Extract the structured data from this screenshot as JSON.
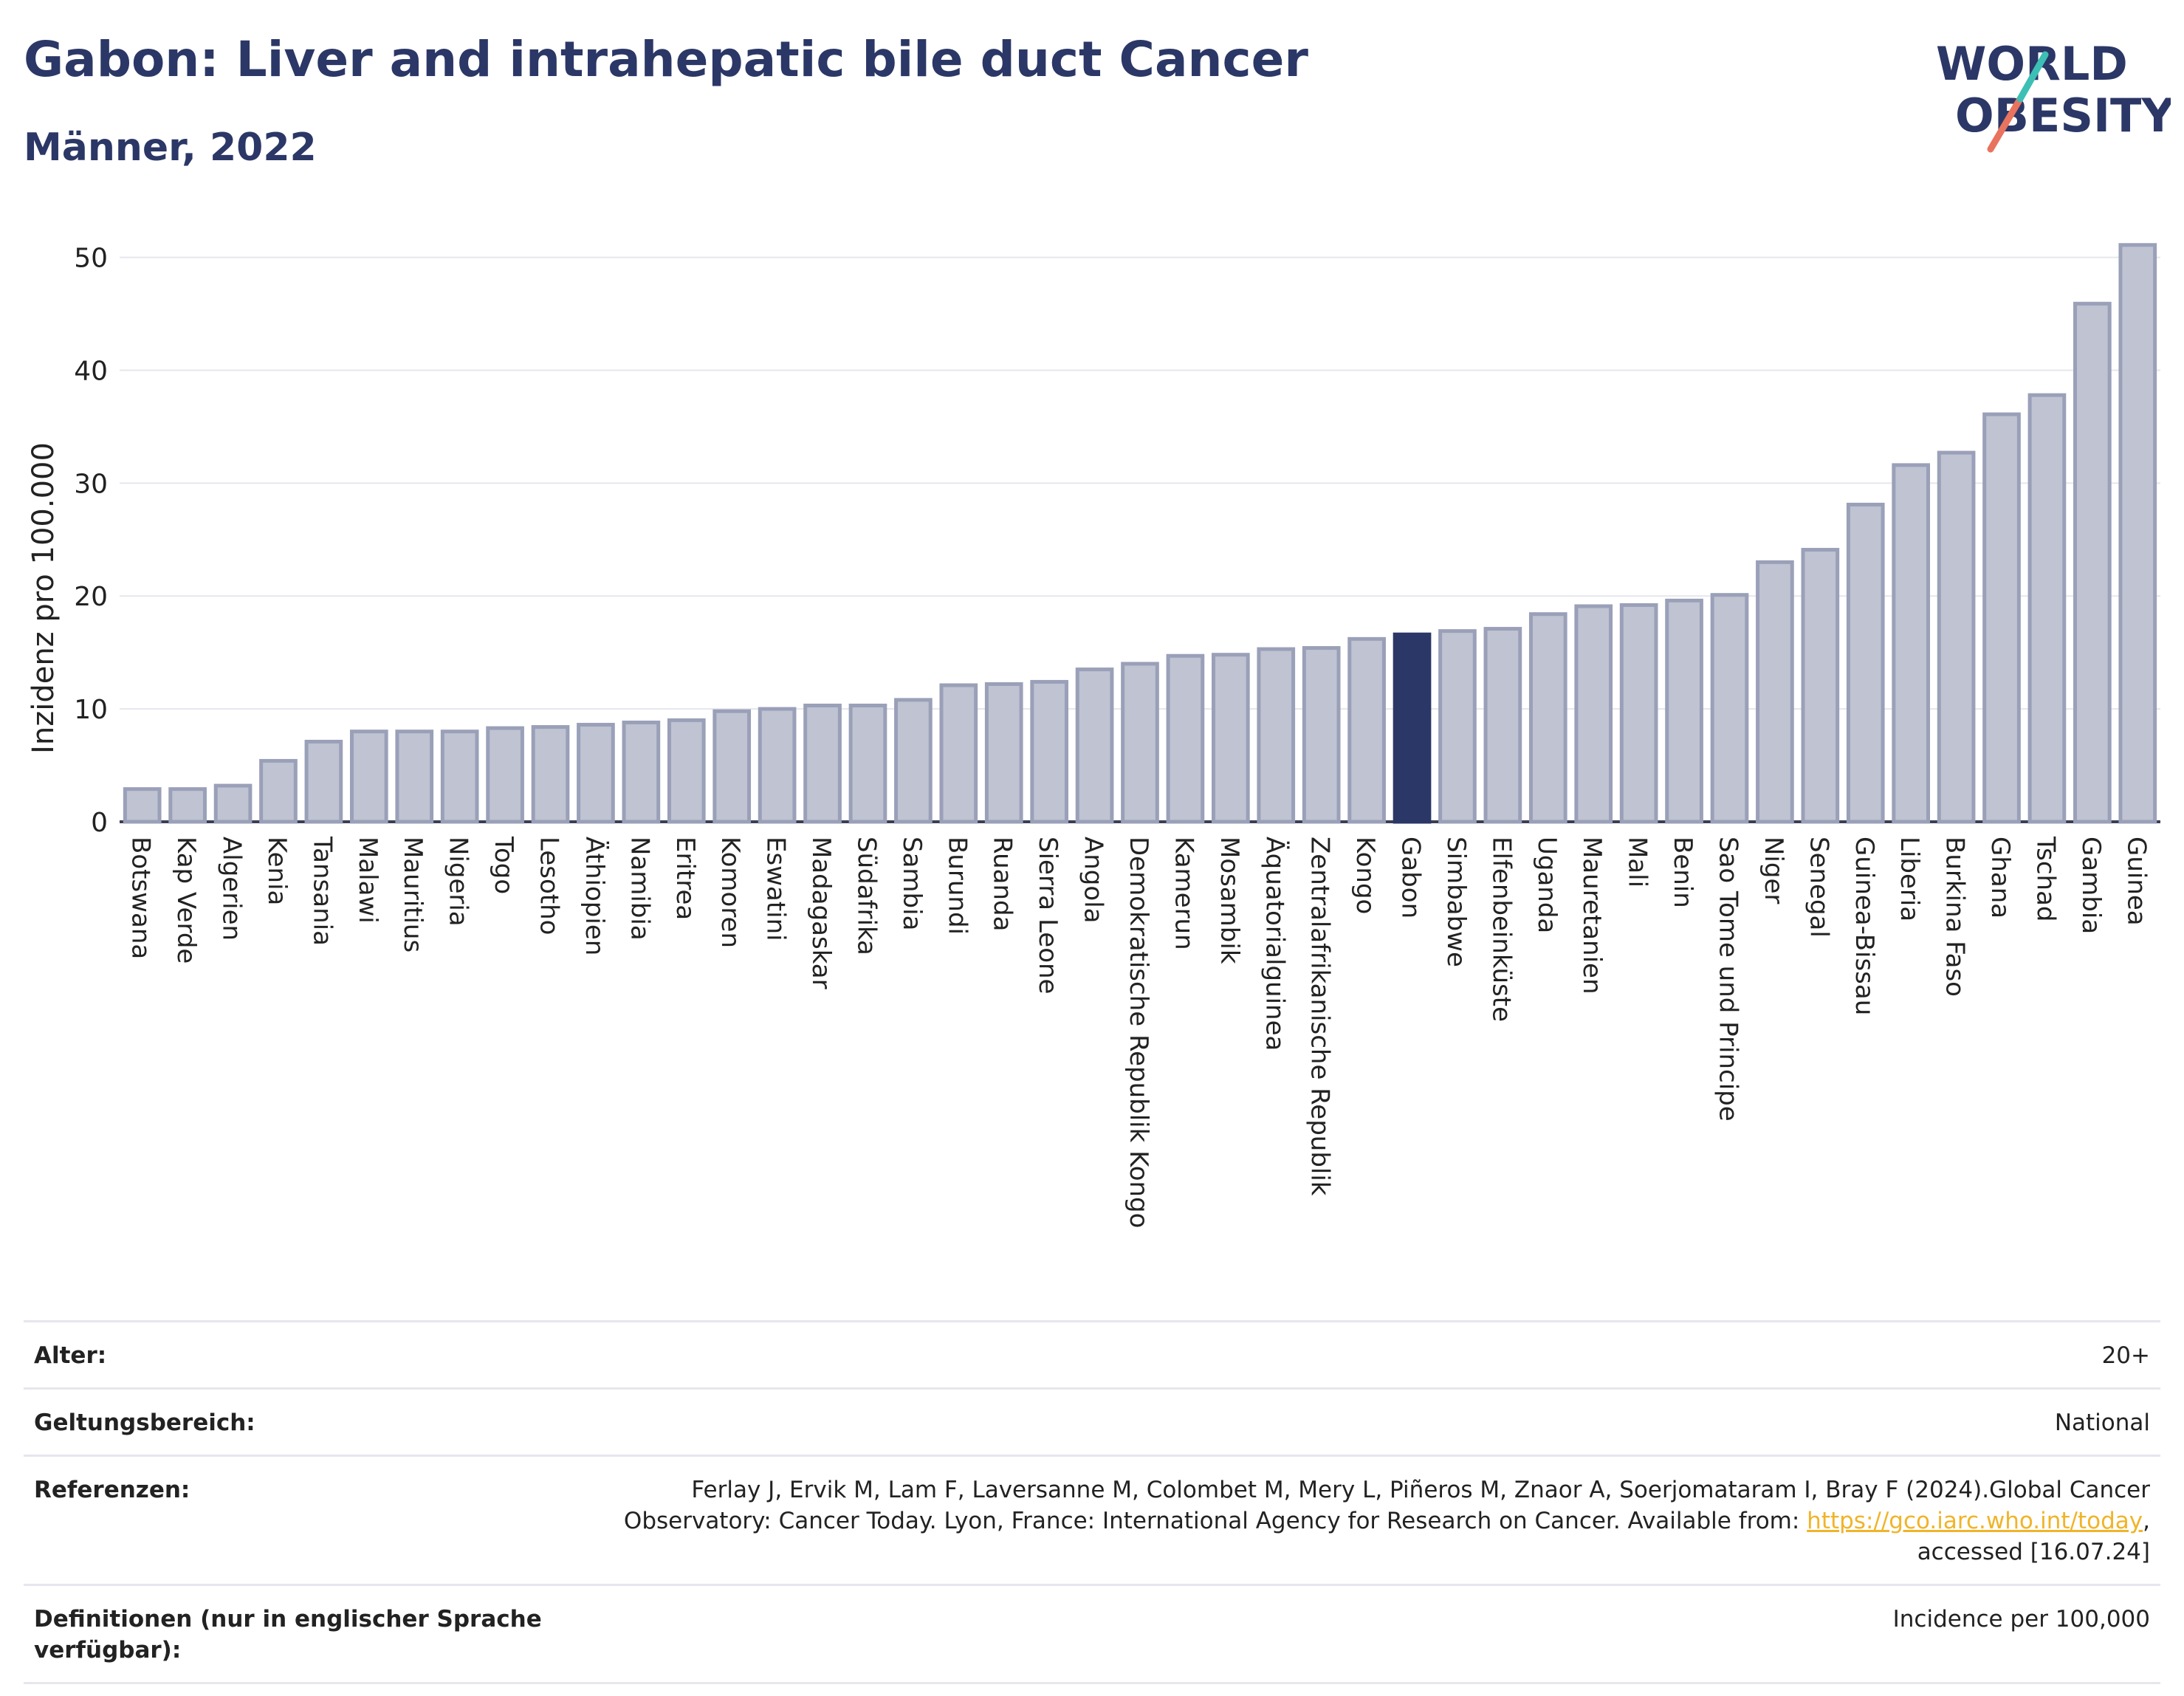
{
  "header": {
    "title": "Gabon: Liver and intrahepatic bile duct Cancer",
    "subtitle": "Männer, 2022"
  },
  "logo": {
    "line1": "WORLD",
    "line2": "OBESITY",
    "colors": {
      "text": "#2b3766",
      "slash_top": "#3cbfb4",
      "slash_bottom": "#e8735f"
    }
  },
  "chart_data": {
    "type": "bar",
    "ylabel": "Inzidenz pro 100.000",
    "ylim": [
      0,
      52
    ],
    "yticks": [
      0,
      10,
      20,
      30,
      40,
      50
    ],
    "grid": true,
    "highlight": "Gabon",
    "colors": {
      "bar": "#bfc3d2",
      "bar_border": "#9aa0b8",
      "highlight": "#2b3766"
    },
    "categories": [
      "Botswana",
      "Kap Verde",
      "Algerien",
      "Kenia",
      "Tansania",
      "Malawi",
      "Mauritius",
      "Nigeria",
      "Togo",
      "Lesotho",
      "Äthiopien",
      "Namibia",
      "Eritrea",
      "Komoren",
      "Eswatini",
      "Madagaskar",
      "Südafrika",
      "Sambia",
      "Burundi",
      "Ruanda",
      "Sierra Leone",
      "Angola",
      "Demokratische Republik Kongo",
      "Kamerun",
      "Mosambik",
      "Äquatorialguinea",
      "Zentralafrikanische Republik",
      "Kongo",
      "Gabon",
      "Simbabwe",
      "Elfenbeinküste",
      "Uganda",
      "Mauretanien",
      "Mali",
      "Benin",
      "Sao Tome und Principe",
      "Niger",
      "Senegal",
      "Guinea-Bissau",
      "Liberia",
      "Burkina Faso",
      "Ghana",
      "Tschad",
      "Gambia",
      "Guinea"
    ],
    "values": [
      2.9,
      2.9,
      3.2,
      5.4,
      7.1,
      8.0,
      8.0,
      8.0,
      8.3,
      8.4,
      8.6,
      8.8,
      9.0,
      9.8,
      10.0,
      10.3,
      10.3,
      10.8,
      12.1,
      12.2,
      12.4,
      13.5,
      14.0,
      14.7,
      14.8,
      15.3,
      15.4,
      16.2,
      16.6,
      16.9,
      17.1,
      18.4,
      19.1,
      19.2,
      19.6,
      20.1,
      23.0,
      24.1,
      28.1,
      31.6,
      32.7,
      36.1,
      37.8,
      45.9,
      51.1
    ]
  },
  "meta": [
    {
      "label": "Alter:",
      "value": "20+"
    },
    {
      "label": "Geltungsbereich:",
      "value": "National"
    },
    {
      "label": "Referenzen:",
      "value_before": "Ferlay J, Ervik M, Lam F, Laversanne M, Colombet M, Mery L, Piñeros M, Znaor A, Soerjomataram I, Bray F (2024).Global Cancer Observatory: Cancer Today. Lyon, France: International Agency for Research on Cancer. Available from: ",
      "link": "https://gco.iarc.who.int/today",
      "value_after": ", accessed [16.07.24]"
    },
    {
      "label": "Definitionen (nur in englischer Sprache verfügbar):",
      "value": "Incidence per 100,000"
    }
  ]
}
